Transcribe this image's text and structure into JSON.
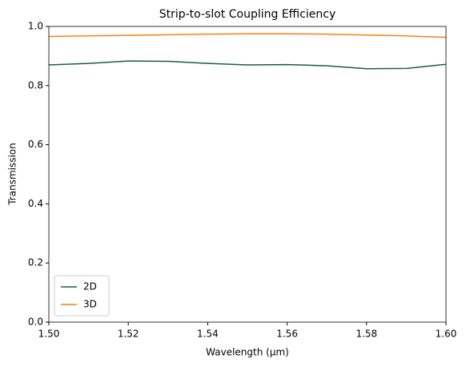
{
  "chart_data": {
    "type": "line",
    "title": "Strip-to-slot Coupling Efficiency",
    "x_label": "Wavelength (μm)",
    "y_label": "Transmission",
    "x": [
      1.5,
      1.51,
      1.52,
      1.53,
      1.54,
      1.55,
      1.56,
      1.57,
      1.58,
      1.59,
      1.6
    ],
    "series": [
      {
        "name": "2D",
        "color": "#1b6135",
        "values": [
          0.87,
          0.875,
          0.883,
          0.882,
          0.875,
          0.87,
          0.871,
          0.867,
          0.857,
          0.858,
          0.872
        ]
      },
      {
        "name": "3D",
        "color": "#ff7f0e",
        "values": [
          0.966,
          0.968,
          0.97,
          0.972,
          0.974,
          0.975,
          0.975,
          0.974,
          0.971,
          0.968,
          0.963
        ]
      }
    ],
    "xlim": [
      1.5,
      1.6
    ],
    "ylim": [
      0.0,
      1.0
    ],
    "xticks": [
      {
        "value": 1.5,
        "label": "1.50"
      },
      {
        "value": 1.52,
        "label": "1.52"
      },
      {
        "value": 1.54,
        "label": "1.54"
      },
      {
        "value": 1.56,
        "label": "1.56"
      },
      {
        "value": 1.58,
        "label": "1.58"
      },
      {
        "value": 1.6,
        "label": "1.60"
      }
    ],
    "yticks": [
      {
        "value": 0.0,
        "label": "0.0"
      },
      {
        "value": 0.2,
        "label": "0.2"
      },
      {
        "value": 0.4,
        "label": "0.4"
      },
      {
        "value": 0.6,
        "label": "0.6"
      },
      {
        "value": 0.8,
        "label": "0.8"
      },
      {
        "value": 1.0,
        "label": "1.0"
      }
    ],
    "legend_position": "lower left"
  }
}
